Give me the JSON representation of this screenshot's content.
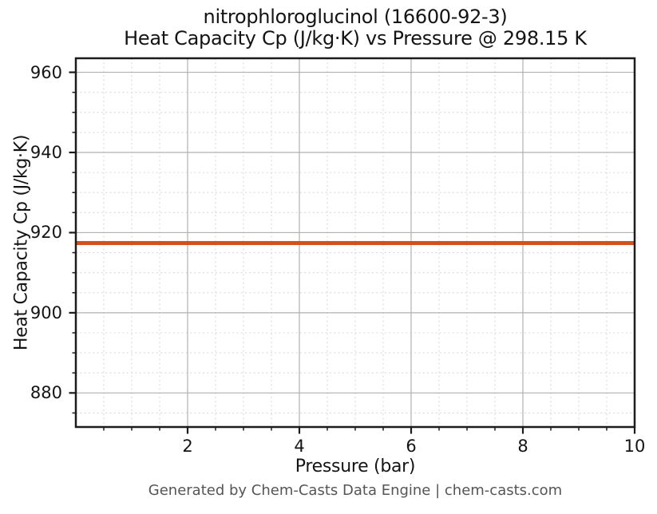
{
  "colors": {
    "line": "#d2521e",
    "grid_major": "#b0b0b0",
    "grid_minor": "#d9d9d9",
    "spine": "#1c1c1c",
    "tick": "#1c1c1c",
    "text": "#141414",
    "footer_text": "#555555",
    "background": "#ffffff"
  },
  "footer": {
    "text": "Generated by Chem-Casts Data Engine | chem-casts.com"
  },
  "chart_data": {
    "type": "line",
    "title_line1": "nitrophloroglucinol (16600-92-3)",
    "title_line2": "Heat Capacity Cp (J/kg·K) vs Pressure @ 298.15 K",
    "title": "nitrophloroglucinol (16600-92-3)\nHeat Capacity Cp (J/kg·K) vs Pressure @ 298.15 K",
    "xlabel": "Pressure (bar)",
    "ylabel": "Heat Capacity Cp (J/kg·K)",
    "xlim": [
      0,
      10
    ],
    "ylim": [
      871.5,
      963.5
    ],
    "x_major_ticks": [
      2,
      4,
      6,
      8,
      10
    ],
    "x_minor_tick_step": 0.5,
    "y_major_ticks": [
      880,
      900,
      920,
      940,
      960
    ],
    "y_minor_tick_step": 5,
    "grid": {
      "major": true,
      "minor": true
    },
    "legend": null,
    "series": [
      {
        "name": "Heat Capacity Cp",
        "x": [
          0,
          10
        ],
        "y": [
          917.4,
          917.4
        ],
        "color": "#d2521e",
        "linewidth": 5
      }
    ]
  }
}
